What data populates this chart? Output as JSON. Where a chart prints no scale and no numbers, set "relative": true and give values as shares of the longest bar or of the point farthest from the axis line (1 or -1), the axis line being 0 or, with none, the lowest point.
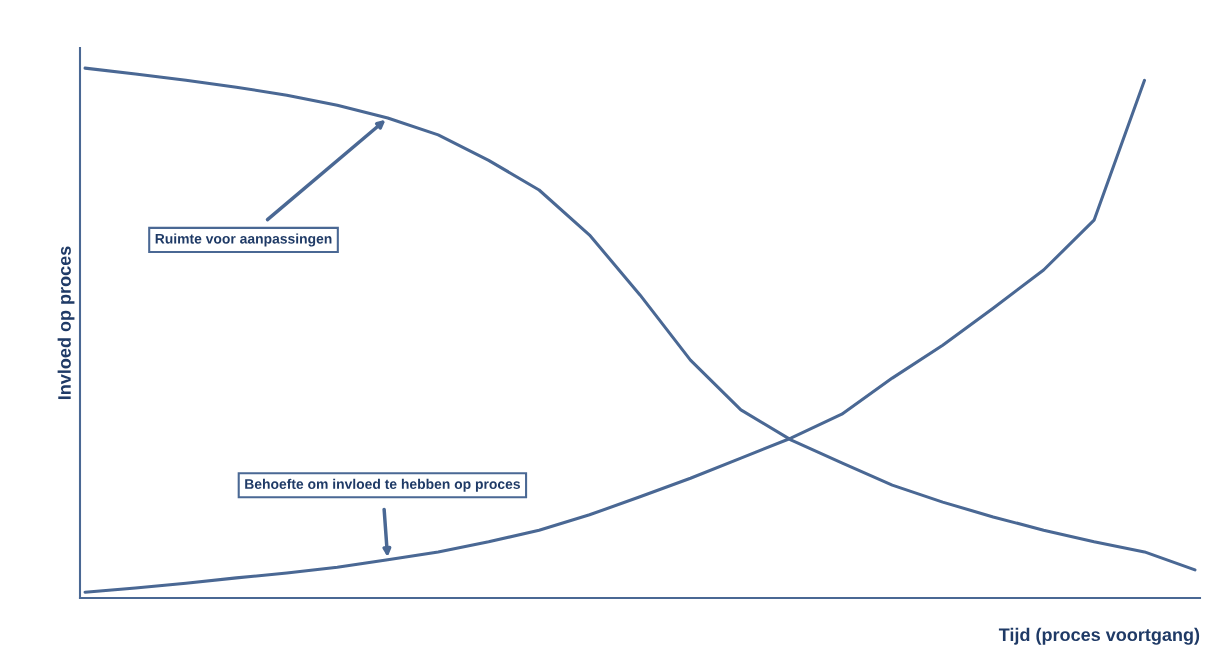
{
  "chart_data": {
    "type": "line",
    "xlabel": "Tijd (proces voortgang)",
    "ylabel": "Invloed op proces",
    "relative": true,
    "categories": [
      null,
      null,
      null,
      null,
      null,
      null,
      null,
      null,
      null,
      null,
      null,
      null,
      null,
      null,
      null,
      null,
      null,
      null,
      null,
      null,
      null,
      null,
      null
    ],
    "series": [
      {
        "name": "Ruimte voor aanpassingen",
        "color": "#4a6894",
        "values": [
          1.0,
          0.989,
          0.977,
          0.964,
          0.949,
          0.93,
          0.906,
          0.874,
          0.826,
          0.77,
          0.685,
          0.572,
          0.449,
          0.355,
          0.298,
          0.255,
          0.213,
          0.181,
          0.153,
          0.128,
          0.106,
          0.087,
          0.053
        ]
      },
      {
        "name": "Behoefte om invloed te hebben op proces",
        "color": "#4a6894",
        "values": [
          0.011,
          0.019,
          0.028,
          0.038,
          0.047,
          0.058,
          0.072,
          0.087,
          0.106,
          0.128,
          0.157,
          0.191,
          0.226,
          0.264,
          0.302,
          0.347,
          0.415,
          0.477,
          0.547,
          0.619,
          0.713,
          0.977,
          null
        ]
      }
    ]
  }
}
